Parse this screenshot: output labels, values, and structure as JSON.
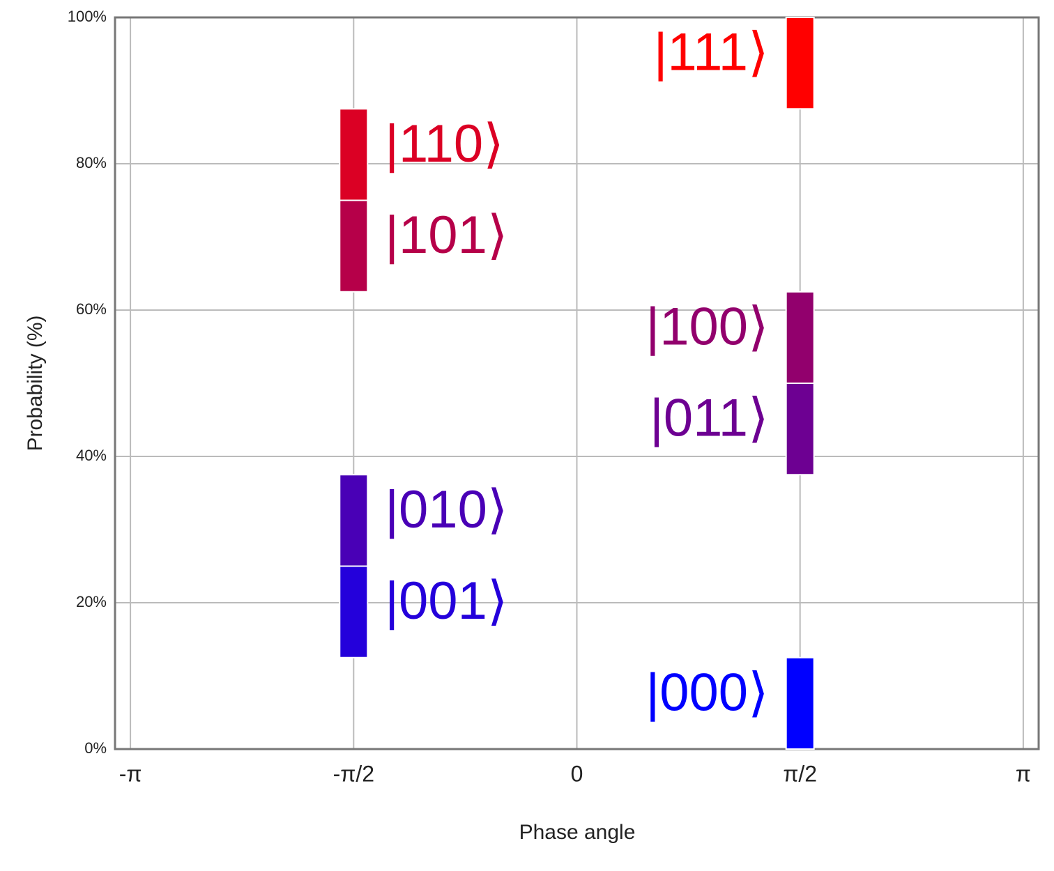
{
  "chart_data": {
    "type": "bar",
    "x_label": "Phase angle",
    "y_label": "Probability (%)",
    "categories": [
      "|000⟩",
      "|001⟩",
      "|010⟩",
      "|011⟩",
      "|100⟩",
      "|101⟩",
      "|110⟩",
      "|111⟩"
    ],
    "x": [
      1.5708,
      -1.5708,
      -1.5708,
      1.5708,
      1.5708,
      -1.5708,
      -1.5708,
      1.5708
    ],
    "values": [
      12.5,
      12.5,
      12.5,
      12.5,
      12.5,
      12.5,
      12.5,
      12.5
    ],
    "colors": [
      "#0000ff",
      "#2400db",
      "#4900b6",
      "#6d0092",
      "#92006d",
      "#b60049",
      "#db0024",
      "#ff0000"
    ],
    "xlim": [
      -3.25,
      3.25
    ],
    "xticks": [
      {
        "value": -3.14159,
        "label": "-π"
      },
      {
        "value": -1.5708,
        "label": "-π/2"
      },
      0,
      {
        "value": 1.5708,
        "label": "π/2"
      },
      {
        "value": 3.14159,
        "label": "π"
      }
    ],
    "ylim": [
      0,
      100
    ],
    "yticks": [
      {
        "value": 0,
        "label": "0%"
      },
      {
        "value": 20,
        "label": "20%"
      },
      {
        "value": 40,
        "label": "40%"
      },
      {
        "value": 60,
        "label": "60%"
      },
      {
        "value": 80,
        "label": "80%"
      },
      {
        "value": 100,
        "label": "100%"
      }
    ],
    "grid": true
  }
}
